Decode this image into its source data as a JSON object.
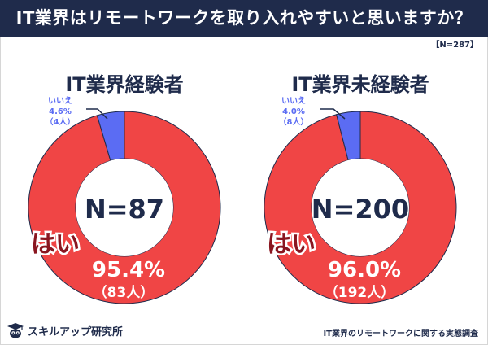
{
  "header": {
    "title": "IT業界はリモートワークを取り入れやすいと思いますか？",
    "sample_note": "【N=287】"
  },
  "chart_data": [
    {
      "type": "pie",
      "title": "IT業界経験者",
      "center_label": "N=87",
      "slices": [
        {
          "label": "はい",
          "percent": 95.4,
          "percent_text": "95.4%",
          "count_text": "（83人）",
          "color": "#f04545"
        },
        {
          "label": "いいえ",
          "percent": 4.6,
          "percent_text": "4.6%",
          "count_text": "（4人）",
          "color": "#5b6cf3"
        }
      ]
    },
    {
      "type": "pie",
      "title": "IT業界未経験者",
      "center_label": "N=200",
      "slices": [
        {
          "label": "はい",
          "percent": 96.0,
          "percent_text": "96.0%",
          "count_text": "（192人）",
          "color": "#f04545"
        },
        {
          "label": "いいえ",
          "percent": 4.0,
          "percent_text": "4.0%",
          "count_text": "（8人）",
          "color": "#5b6cf3"
        }
      ]
    }
  ],
  "footer": {
    "brand": "スキルアップ研究所",
    "source": "IT業界のリモートワークに関する実態調査",
    "logo_icon": "graduation-cap-owl-icon"
  },
  "colors": {
    "navy": "#1f2b4b",
    "red": "#f04545",
    "blue": "#5b6cf3",
    "dark_red": "#8a1620"
  }
}
